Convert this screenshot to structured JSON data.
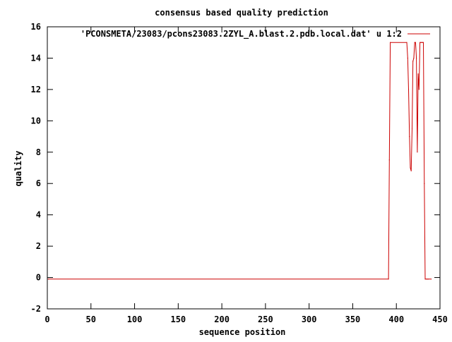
{
  "chart_data": {
    "type": "line",
    "title": "consensus based quality prediction",
    "xlabel": "sequence position",
    "ylabel": "quality",
    "xlim": [
      0,
      450
    ],
    "ylim": [
      -2,
      16
    ],
    "xticks": [
      0,
      50,
      100,
      150,
      200,
      250,
      300,
      350,
      400,
      450
    ],
    "yticks": [
      -2,
      0,
      2,
      4,
      6,
      8,
      10,
      12,
      14,
      16
    ],
    "grid": false,
    "legend_position": "top-right",
    "series": [
      {
        "name": "'PCONSMETA/23083/pcons23083.2ZYL_A.blast.2.pdb.local.dat' u 1:2",
        "color": "#cc0000",
        "x": [
          1,
          391,
          392,
          393,
          412,
          413,
          414,
          415,
          416,
          417,
          418,
          419,
          420,
          421,
          422,
          423,
          424,
          425,
          426,
          427,
          428,
          429,
          430,
          431,
          432,
          433,
          434,
          435,
          436,
          437,
          440
        ],
        "y": [
          -0.1,
          -0.1,
          7.5,
          15.0,
          15.0,
          14.0,
          12.0,
          9.0,
          7.0,
          6.8,
          9.5,
          13.8,
          14.0,
          15.0,
          15.0,
          14.0,
          8.0,
          13.0,
          12.0,
          15.0,
          15.0,
          15.0,
          15.0,
          15.0,
          6.0,
          -0.1,
          -0.1,
          -0.1,
          -0.1,
          -0.1,
          -0.1
        ]
      }
    ]
  }
}
